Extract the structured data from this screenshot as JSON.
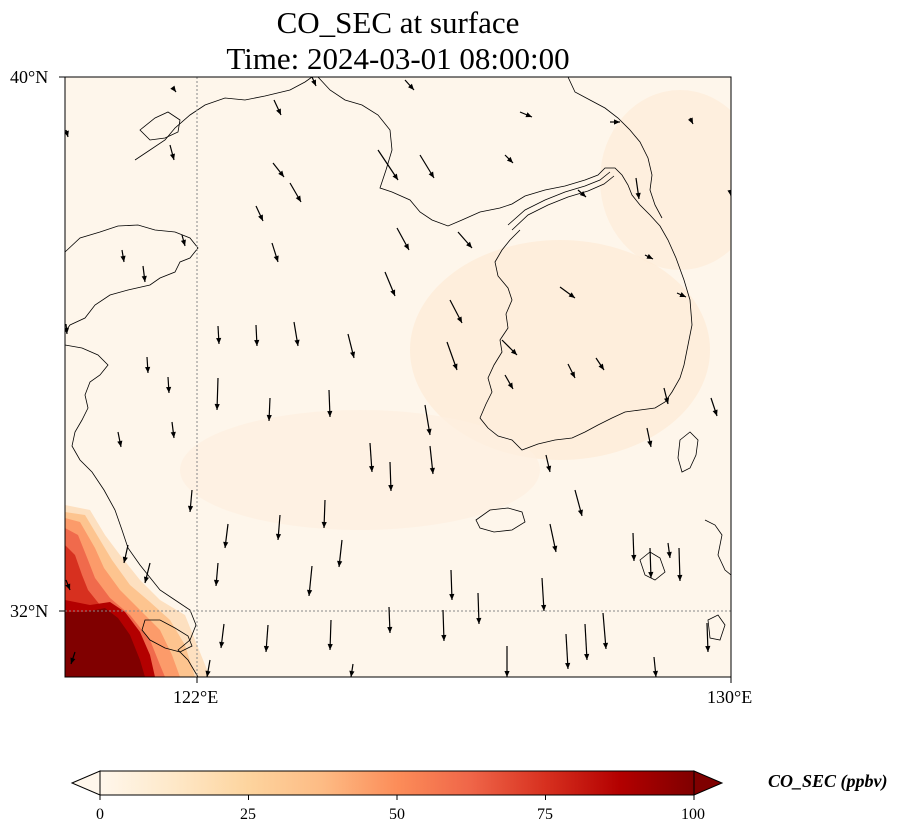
{
  "title": {
    "line1": "CO_SEC at surface",
    "line2": "Time: 2024-03-01 08:00:00"
  },
  "map": {
    "lon_range": [
      121,
      130
    ],
    "lat_range": [
      31.1,
      40
    ],
    "gridlines": {
      "lon": [
        122
      ],
      "lat": [
        32
      ],
      "style": "dotted"
    }
  },
  "axes": {
    "x_ticks": [
      {
        "lon": 122,
        "label": "122°E"
      },
      {
        "lon": 130,
        "label": "130°E"
      }
    ],
    "y_ticks": [
      {
        "lat": 40,
        "label": "40°N"
      },
      {
        "lat": 32,
        "label": "32°N"
      }
    ]
  },
  "colorbar": {
    "label": "CO_SEC (ppbv)",
    "colormap": "OrRd",
    "colors": [
      "#fff7ec",
      "#fee8c8",
      "#fdd49e",
      "#fdbb84",
      "#fc8d59",
      "#ef6548",
      "#d7301f",
      "#b30000",
      "#7f0000"
    ],
    "min": 0,
    "max": 100,
    "extend": "both",
    "ticks": [
      {
        "value": 0,
        "label": "0"
      },
      {
        "value": 25,
        "label": "25"
      },
      {
        "value": 50,
        "label": "50"
      },
      {
        "value": 75,
        "label": "75"
      },
      {
        "value": 100,
        "label": "100"
      }
    ]
  },
  "field_summary": "Near-background CO_SEC (about 1-5 ppbv) over the Yellow Sea, Korean Peninsula and East China Sea; elevated values (25-100+ ppbv) near the Yangtze River delta in the southwest corner.",
  "wind_vectors": "predominantly northerly to north-northwesterly surface winds"
}
